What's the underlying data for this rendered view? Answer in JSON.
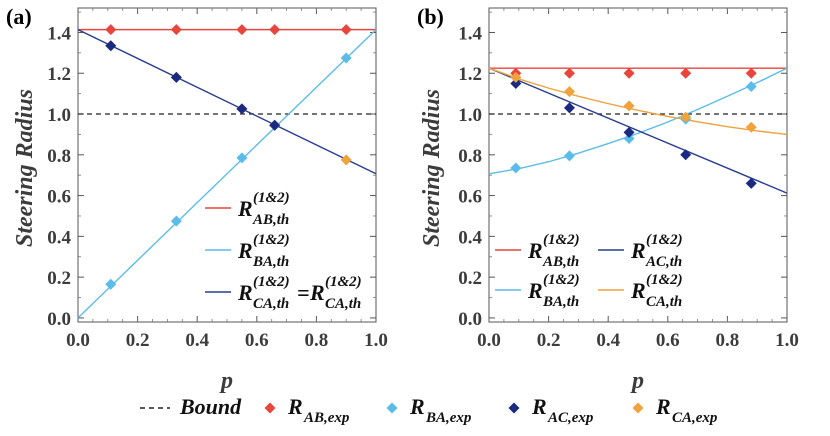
{
  "chart_data": [
    {
      "panel": "(a)",
      "type": "line+scatter",
      "xlabel": "p",
      "ylabel": "Steering Radius",
      "xlim": [
        0,
        1
      ],
      "ylim": [
        -0.02,
        1.52
      ],
      "xticks": [
        0.0,
        0.2,
        0.4,
        0.6,
        0.8,
        1.0
      ],
      "xtick_labels": [
        "0.0",
        "0.2",
        "0.4",
        "0.6",
        "0.8",
        "1.0"
      ],
      "yticks": [
        0.0,
        0.2,
        0.4,
        0.6,
        0.8,
        1.0,
        1.2,
        1.4
      ],
      "ytick_labels": [
        "0.0",
        "0.2",
        "0.4",
        "0.6",
        "0.8",
        "1.0",
        "1.2",
        "1.4"
      ],
      "bound": 1.0,
      "lines": [
        {
          "key": "AB",
          "color": "#e8453c",
          "x": [
            0,
            1
          ],
          "y": [
            1.414,
            1.414
          ]
        },
        {
          "key": "BA",
          "color": "#5bbcea",
          "x": [
            0,
            1
          ],
          "y": [
            0.0,
            1.414
          ]
        },
        {
          "key": "CA",
          "color": "#2a3d8f",
          "x": [
            0,
            1
          ],
          "y": [
            1.414,
            0.707
          ]
        }
      ],
      "points": [
        {
          "key": "AB",
          "color": "#e8453c",
          "x": [
            0.11,
            0.33,
            0.55,
            0.66,
            0.9
          ],
          "y": [
            1.414,
            1.414,
            1.414,
            1.414,
            1.414
          ]
        },
        {
          "key": "BA",
          "color": "#5bbcea",
          "x": [
            0.11,
            0.33,
            0.55,
            0.66,
            0.9
          ],
          "y": [
            0.165,
            0.475,
            0.785,
            0.945,
            1.275
          ]
        },
        {
          "key": "CA",
          "color": "#f0a23c",
          "x": [
            0.11,
            0.33,
            0.55,
            0.66,
            0.9
          ],
          "y": [
            1.335,
            1.18,
            1.025,
            0.945,
            0.775
          ]
        },
        {
          "key": "AC",
          "color": "#1a2a80",
          "x": [
            0.11,
            0.33,
            0.55,
            0.66
          ],
          "y": [
            1.335,
            1.18,
            1.025,
            0.945
          ]
        }
      ],
      "legend": [
        {
          "key": "AB",
          "color": "#e8453c",
          "main": "R",
          "sup": "(1&2)",
          "sub": "AB,th"
        },
        {
          "key": "BA",
          "color": "#5bbcea",
          "main": "R",
          "sup": "(1&2)",
          "sub": "BA,th"
        },
        {
          "key": "CA",
          "color": "#2a3d8f",
          "main": "R",
          "sup": "(1&2)",
          "sub": "CA,th",
          "eq": "=",
          "main2": "R",
          "sup2": "(1&2)",
          "sub2": "CA,th"
        }
      ]
    },
    {
      "panel": "(b)",
      "type": "line+scatter",
      "xlabel": "p",
      "ylabel": "Steering Radius",
      "xlim": [
        0,
        1
      ],
      "ylim": [
        -0.02,
        1.52
      ],
      "xticks": [
        0.0,
        0.2,
        0.4,
        0.6,
        0.8,
        1.0
      ],
      "xtick_labels": [
        "0.0",
        "0.2",
        "0.4",
        "0.6",
        "0.8",
        "1.0"
      ],
      "yticks": [
        0.0,
        0.2,
        0.4,
        0.6,
        0.8,
        1.0,
        1.2,
        1.4
      ],
      "ytick_labels": [
        "0.0",
        "0.2",
        "0.4",
        "0.6",
        "0.8",
        "1.0",
        "1.2",
        "1.4"
      ],
      "bound": 1.0,
      "lines": [
        {
          "key": "AB",
          "color": "#e8453c",
          "x": [
            0,
            1
          ],
          "y": [
            1.225,
            1.225
          ]
        },
        {
          "key": "BA",
          "color": "#5bbcea",
          "x": [
            0.0,
            0.1,
            0.2,
            0.3,
            0.4,
            0.5,
            0.6,
            0.7,
            0.8,
            0.9,
            1.0
          ],
          "y": [
            0.707,
            0.732,
            0.766,
            0.808,
            0.855,
            0.905,
            0.961,
            1.022,
            1.087,
            1.154,
            1.225
          ]
        },
        {
          "key": "AC",
          "color": "#2a3d8f",
          "x": [
            0,
            1
          ],
          "y": [
            1.225,
            0.612
          ]
        },
        {
          "key": "CA",
          "color": "#f0a23c",
          "x": [
            0.0,
            0.1,
            0.2,
            0.3,
            0.4,
            0.5,
            0.6,
            0.7,
            0.8,
            0.9,
            1.0
          ],
          "y": [
            1.225,
            1.172,
            1.127,
            1.087,
            1.051,
            1.018,
            0.988,
            0.962,
            0.938,
            0.917,
            0.9
          ]
        }
      ],
      "points": [
        {
          "key": "AB",
          "color": "#e8453c",
          "x": [
            0.09,
            0.27,
            0.47,
            0.66,
            0.88
          ],
          "y": [
            1.2,
            1.2,
            1.2,
            1.2,
            1.2
          ]
        },
        {
          "key": "BA",
          "color": "#5bbcea",
          "x": [
            0.09,
            0.27,
            0.47,
            0.66,
            0.88
          ],
          "y": [
            0.735,
            0.795,
            0.88,
            0.975,
            1.135
          ]
        },
        {
          "key": "AC",
          "color": "#1a2a80",
          "x": [
            0.09,
            0.27,
            0.47,
            0.66,
            0.88
          ],
          "y": [
            1.15,
            1.03,
            0.91,
            0.8,
            0.66
          ]
        },
        {
          "key": "CA",
          "color": "#f0a23c",
          "x": [
            0.09,
            0.27,
            0.47,
            0.66,
            0.88
          ],
          "y": [
            1.18,
            1.11,
            1.04,
            0.985,
            0.935
          ]
        }
      ],
      "legend": [
        {
          "key": "AB",
          "color": "#e8453c",
          "main": "R",
          "sup": "(1&2)",
          "sub": "AB,th"
        },
        {
          "key": "AC",
          "color": "#2a3d8f",
          "main": "R",
          "sup": "(1&2)",
          "sub": "AC,th"
        },
        {
          "key": "BA",
          "color": "#5bbcea",
          "main": "R",
          "sup": "(1&2)",
          "sub": "BA,th"
        },
        {
          "key": "CA",
          "color": "#f0a23c",
          "main": "R",
          "sup": "(1&2)",
          "sub": "CA,th"
        }
      ]
    }
  ],
  "bottom_legend": [
    {
      "kind": "dashed",
      "color": "#222222",
      "main": "Bound",
      "sub": ""
    },
    {
      "kind": "marker",
      "color": "#e8453c",
      "main": "R",
      "sub": "AB,exp"
    },
    {
      "kind": "marker",
      "color": "#5bbcea",
      "main": "R",
      "sub": "BA,exp"
    },
    {
      "kind": "marker",
      "color": "#1a2a80",
      "main": "R",
      "sub": "AC,exp"
    },
    {
      "kind": "marker",
      "color": "#f0a23c",
      "main": "R",
      "sub": "CA,exp"
    }
  ]
}
